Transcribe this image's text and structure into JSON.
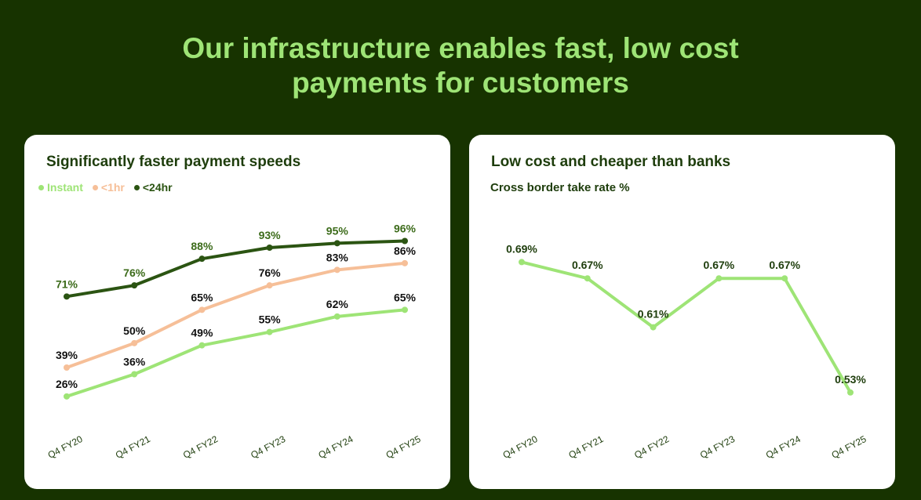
{
  "title": {
    "line1": "Our infrastructure enables fast, low cost",
    "line2": "payments for customers"
  },
  "colors": {
    "background": "#173300",
    "title_accent": "#9ee476",
    "card": "#ffffff",
    "heading_text": "#1e3d0c"
  },
  "chart_data": [
    {
      "type": "line",
      "title": "Significantly faster payment speeds",
      "categories": [
        "Q4 FY20",
        "Q4 FY21",
        "Q4 FY22",
        "Q4 FY23",
        "Q4 FY24",
        "Q4 FY25"
      ],
      "y_unit": "%",
      "ylim": [
        15,
        105
      ],
      "grid": false,
      "legend_position": "top-left",
      "series": [
        {
          "name": "Instant",
          "values": [
            26,
            36,
            49,
            55,
            62,
            65
          ],
          "color": "#9ee476",
          "label_color": "#111111"
        },
        {
          "name": "<1hr",
          "values": [
            39,
            50,
            65,
            76,
            83,
            86
          ],
          "color": "#f6bf98",
          "label_color": "#111111"
        },
        {
          "name": "<24hr",
          "values": [
            71,
            76,
            88,
            93,
            95,
            96
          ],
          "color": "#2b5412",
          "label_color": "#3c6b1a"
        }
      ]
    },
    {
      "type": "line",
      "title": "Low cost and cheaper than banks",
      "subtitle": "Cross border take rate %",
      "categories": [
        "Q4 FY20",
        "Q4 FY21",
        "Q4 FY22",
        "Q4 FY23",
        "Q4 FY24",
        "Q4 FY25"
      ],
      "y_unit": "%",
      "ylim": [
        0.45,
        0.8
      ],
      "grid": false,
      "legend_position": "none",
      "series": [
        {
          "name": "",
          "values": [
            0.69,
            0.67,
            0.61,
            0.67,
            0.67,
            0.53
          ],
          "color": "#9ee476",
          "label_color": "#1e3d0c"
        }
      ]
    }
  ]
}
